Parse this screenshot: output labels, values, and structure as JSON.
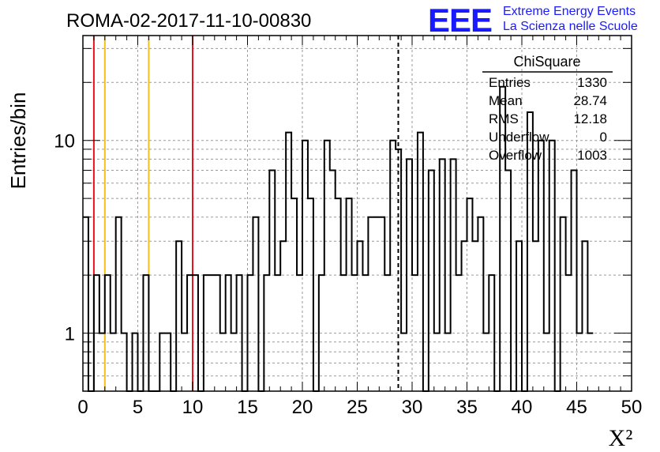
{
  "title": "ROMA-02-2017-11-10-00830",
  "logo": {
    "letters": "EEE",
    "line1": "Extreme Energy Events",
    "line2": "La Scienza nelle Scuole",
    "color": "#1a1aff"
  },
  "stats_box": {
    "title": "ChiSquare",
    "rows": [
      {
        "label": "Entries",
        "value": "1330"
      },
      {
        "label": "Mean",
        "value": "28.74"
      },
      {
        "label": "RMS",
        "value": "12.18"
      },
      {
        "label": "Underflow",
        "value": "0"
      },
      {
        "label": "Overflow",
        "value": "1003"
      }
    ]
  },
  "chart_data": {
    "type": "bar",
    "style": "step-histogram",
    "title": "ROMA-02-2017-11-10-00830",
    "xlabel": "X²",
    "ylabel": "Entries/bin",
    "xlim": [
      0,
      50
    ],
    "ylim": [
      0.5,
      35
    ],
    "yscale": "log",
    "grid": true,
    "bin_width": 0.5,
    "bin_start": 0,
    "values": [
      4,
      0,
      2,
      1,
      2,
      1,
      4,
      1,
      0,
      1,
      0,
      2,
      0,
      0,
      1,
      1,
      0,
      3,
      1,
      2,
      2,
      0,
      2,
      2,
      2,
      1,
      2,
      1,
      2,
      0,
      2,
      4,
      0,
      2,
      7,
      2,
      3,
      11,
      5,
      2,
      10,
      5,
      0,
      2,
      10,
      7,
      5,
      2,
      5,
      2,
      3,
      2,
      4,
      4,
      4,
      2,
      10,
      9,
      1,
      8,
      2,
      11,
      0,
      7,
      1,
      8,
      1,
      8,
      2,
      3,
      5,
      3,
      4,
      1,
      2,
      0,
      19,
      7,
      0,
      3,
      0,
      14,
      3,
      10,
      1,
      10,
      0,
      4,
      2,
      7,
      1,
      3,
      1
    ],
    "x_ticks": [
      0,
      5,
      10,
      15,
      20,
      25,
      30,
      35,
      40,
      45,
      50
    ],
    "y_ticks": [
      1,
      10
    ],
    "vertical_lines": [
      {
        "x": 1,
        "color": "#e8141b",
        "style": "solid"
      },
      {
        "x": 2,
        "color": "#f4c019",
        "style": "solid"
      },
      {
        "x": 6,
        "color": "#f4c019",
        "style": "solid"
      },
      {
        "x": 10,
        "color": "#e8141b",
        "style": "solid"
      },
      {
        "x": 28.74,
        "color": "#000000",
        "style": "dashed"
      }
    ]
  }
}
